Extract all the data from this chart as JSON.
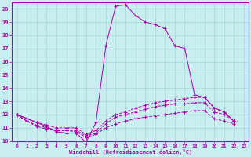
{
  "xlabel": "Windchill (Refroidissement éolien,°C)",
  "background_color": "#c8eef0",
  "grid_color": "#aad4dc",
  "line_color": "#aa00aa",
  "xlim": [
    -0.5,
    23.5
  ],
  "ylim": [
    10,
    20.5
  ],
  "xticks": [
    0,
    1,
    2,
    3,
    4,
    5,
    6,
    7,
    8,
    9,
    10,
    11,
    12,
    13,
    14,
    15,
    16,
    17,
    18,
    19,
    20,
    21,
    22,
    23
  ],
  "yticks": [
    10,
    11,
    12,
    13,
    14,
    15,
    16,
    17,
    18,
    19,
    20
  ],
  "series": [
    [
      12.0,
      11.7,
      11.4,
      11.1,
      10.7,
      10.6,
      10.6,
      9.9,
      11.4,
      17.2,
      20.2,
      20.3,
      19.5,
      19.0,
      18.8,
      18.5,
      17.2,
      17.0,
      13.5,
      13.3,
      12.5,
      12.2,
      11.5
    ],
    [
      12.0,
      11.7,
      11.4,
      11.2,
      11.0,
      11.0,
      11.0,
      10.5,
      10.8,
      11.5,
      12.0,
      12.2,
      12.5,
      12.7,
      12.9,
      13.0,
      13.1,
      13.2,
      13.3,
      13.3,
      12.5,
      12.2,
      11.5
    ],
    [
      12.0,
      11.5,
      11.2,
      11.0,
      10.8,
      10.8,
      10.8,
      10.4,
      10.6,
      11.3,
      11.8,
      12.0,
      12.2,
      12.4,
      12.6,
      12.7,
      12.8,
      12.8,
      12.9,
      12.9,
      12.2,
      12.0,
      11.5
    ],
    [
      12.0,
      11.5,
      11.1,
      10.9,
      10.8,
      10.8,
      10.7,
      10.3,
      10.5,
      11.0,
      11.3,
      11.5,
      11.7,
      11.8,
      11.9,
      12.0,
      12.1,
      12.2,
      12.3,
      12.3,
      11.7,
      11.5,
      11.3
    ]
  ]
}
